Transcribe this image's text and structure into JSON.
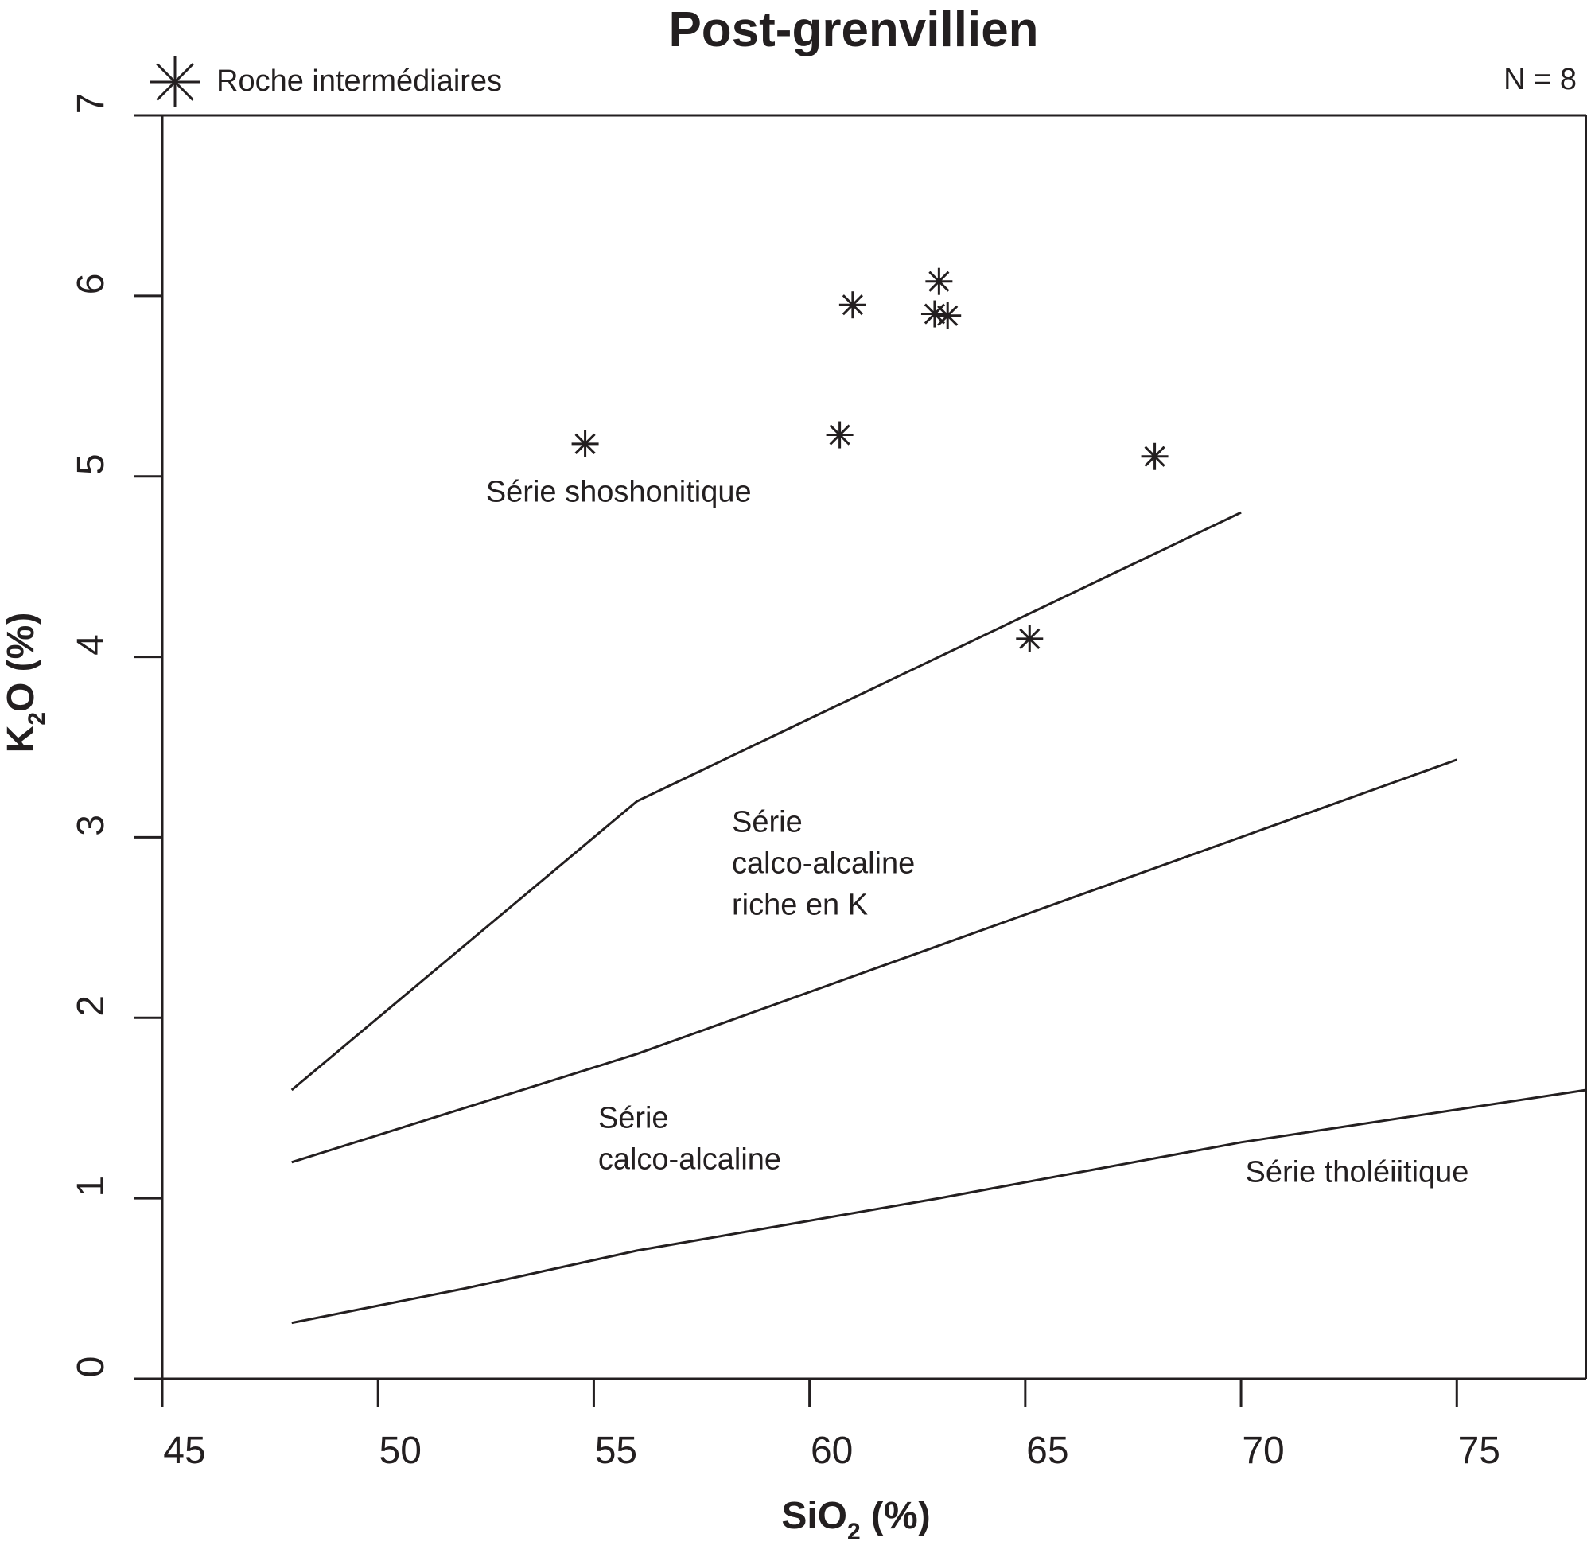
{
  "chart_data": {
    "type": "scatter",
    "title": "Post-grenvillien",
    "xlabel": {
      "base": "SiO",
      "sub": "2",
      "suffix": " (%)"
    },
    "ylabel": {
      "base": "K",
      "sub": "2",
      "suffix": "O (%)"
    },
    "xlim": [
      45,
      78
    ],
    "ylim": [
      0,
      7
    ],
    "xticks": [
      45,
      50,
      55,
      60,
      65,
      70,
      75
    ],
    "yticks": [
      0,
      1,
      2,
      3,
      4,
      5,
      6,
      7
    ],
    "grid": false,
    "legend": {
      "position": "top-left",
      "label": "Roche intermédiaires",
      "marker": "asterisk"
    },
    "annotation_n": "N = 8",
    "series": [
      {
        "name": "Roche intermédiaires",
        "marker": "asterisk",
        "color": "#231f20",
        "points": [
          {
            "x": 54.8,
            "y": 5.18
          },
          {
            "x": 60.7,
            "y": 5.23
          },
          {
            "x": 61.0,
            "y": 5.95
          },
          {
            "x": 63.0,
            "y": 6.08
          },
          {
            "x": 62.9,
            "y": 5.9
          },
          {
            "x": 63.2,
            "y": 5.89
          },
          {
            "x": 68.0,
            "y": 5.11
          },
          {
            "x": 65.1,
            "y": 4.1
          }
        ]
      }
    ],
    "boundary_lines": [
      {
        "points": [
          [
            48,
            1.6
          ],
          [
            56,
            3.2
          ],
          [
            70,
            4.8
          ]
        ]
      },
      {
        "points": [
          [
            48,
            1.2
          ],
          [
            56,
            1.8
          ],
          [
            75,
            3.43
          ]
        ]
      },
      {
        "points": [
          [
            48,
            0.31
          ],
          [
            52,
            0.5
          ],
          [
            56,
            0.71
          ],
          [
            63,
            1.0
          ],
          [
            70,
            1.31
          ],
          [
            78,
            1.6
          ]
        ]
      }
    ],
    "region_labels": [
      {
        "lines": [
          "Série shoshonitique"
        ],
        "x": 52.5,
        "y": 4.86
      },
      {
        "lines": [
          "Série",
          "calco-alcaline",
          "riche en K"
        ],
        "x": 58.2,
        "y": 3.03
      },
      {
        "lines": [
          "Série",
          "calco-alcaline"
        ],
        "x": 55.1,
        "y": 1.39
      },
      {
        "lines": [
          "Série tholéiitique"
        ],
        "x": 70.1,
        "y": 1.09
      }
    ]
  }
}
